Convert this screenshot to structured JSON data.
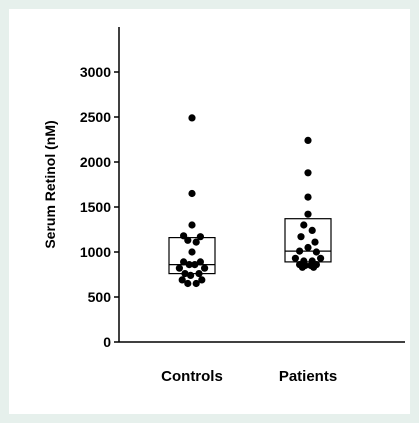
{
  "colors": {
    "background": "#e6f0ec",
    "panel": "#ffffff",
    "ink": "#000000"
  },
  "chart_data": {
    "type": "scatter",
    "subtype": "dot-plot-with-boxes",
    "title": "",
    "xlabel": "",
    "ylabel": "Serum Retinol (nM)",
    "ylim": [
      0,
      3500
    ],
    "yticks": [
      0,
      500,
      1000,
      1500,
      2000,
      2500,
      3000
    ],
    "ytick_labels": [
      "0",
      "500",
      "1000",
      "1500",
      "2000",
      "2500",
      "3000"
    ],
    "grid": false,
    "categories": [
      "Controls",
      "Patients"
    ],
    "series": [
      {
        "category": "Controls",
        "box": {
          "q1": 760,
          "median": 860,
          "q3": 1160
        },
        "points": [
          {
            "jitter": 0.0,
            "y": 2490
          },
          {
            "jitter": 0.0,
            "y": 1650
          },
          {
            "jitter": 0.0,
            "y": 1300
          },
          {
            "jitter": -0.6,
            "y": 1180
          },
          {
            "jitter": 0.6,
            "y": 1170
          },
          {
            "jitter": -0.3,
            "y": 1130
          },
          {
            "jitter": 0.3,
            "y": 1110
          },
          {
            "jitter": 0.0,
            "y": 1000
          },
          {
            "jitter": -0.6,
            "y": 890
          },
          {
            "jitter": 0.6,
            "y": 890
          },
          {
            "jitter": -0.2,
            "y": 860
          },
          {
            "jitter": 0.2,
            "y": 860
          },
          {
            "jitter": -0.9,
            "y": 820
          },
          {
            "jitter": 0.9,
            "y": 820
          },
          {
            "jitter": -0.5,
            "y": 760
          },
          {
            "jitter": 0.5,
            "y": 760
          },
          {
            "jitter": -0.1,
            "y": 740
          },
          {
            "jitter": -0.7,
            "y": 690
          },
          {
            "jitter": 0.7,
            "y": 690
          },
          {
            "jitter": -0.3,
            "y": 650
          },
          {
            "jitter": 0.3,
            "y": 650
          }
        ]
      },
      {
        "category": "Patients",
        "box": {
          "q1": 890,
          "median": 1010,
          "q3": 1370
        },
        "points": [
          {
            "jitter": 0.0,
            "y": 2240
          },
          {
            "jitter": 0.0,
            "y": 1880
          },
          {
            "jitter": 0.0,
            "y": 1610
          },
          {
            "jitter": 0.0,
            "y": 1420
          },
          {
            "jitter": -0.3,
            "y": 1300
          },
          {
            "jitter": 0.3,
            "y": 1240
          },
          {
            "jitter": -0.5,
            "y": 1170
          },
          {
            "jitter": 0.5,
            "y": 1110
          },
          {
            "jitter": 0.0,
            "y": 1050
          },
          {
            "jitter": -0.6,
            "y": 1010
          },
          {
            "jitter": 0.6,
            "y": 1000
          },
          {
            "jitter": -0.9,
            "y": 930
          },
          {
            "jitter": 0.9,
            "y": 930
          },
          {
            "jitter": -0.3,
            "y": 900
          },
          {
            "jitter": 0.3,
            "y": 900
          },
          {
            "jitter": -0.6,
            "y": 860
          },
          {
            "jitter": 0.6,
            "y": 860
          },
          {
            "jitter": -0.2,
            "y": 850
          },
          {
            "jitter": 0.2,
            "y": 850
          },
          {
            "jitter": -0.4,
            "y": 830
          },
          {
            "jitter": 0.4,
            "y": 830
          }
        ]
      }
    ]
  }
}
